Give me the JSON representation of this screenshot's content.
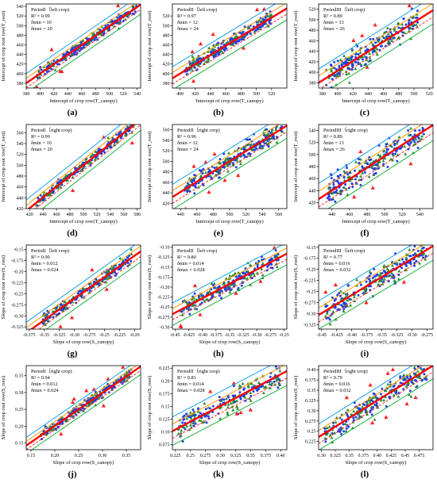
{
  "colors": {
    "point_a": "#1f3fe6",
    "point_b": "#2e8b2e",
    "outlier": "#ff2020",
    "fit": "#ff0000",
    "band_inner_upper": "#ff9900",
    "band_inner_lower": "#ff2a2a",
    "band_outer_upper": "#1aa0e6",
    "band_outer_lower": "#1fb040",
    "axis": "#000000"
  },
  "chart_data": [
    {
      "panel_label": "(a)",
      "type": "scatter",
      "legend": [
        "PeriodI（left crop)",
        "R² = 0.99",
        "δmin = 10",
        "δmax = 20"
      ],
      "xlabel": "Intercept of crop row(T_canopy)",
      "ylabel": "Intercept of crop root row(T_root)",
      "xlim": [
        380,
        545
      ],
      "ylim": [
        370,
        545
      ],
      "xticks": [
        380,
        400,
        420,
        440,
        460,
        480,
        500,
        520,
        540
      ],
      "yticks": [
        380,
        400,
        420,
        440,
        460,
        480,
        500,
        520,
        540
      ],
      "fit": {
        "slope": 0.99,
        "intercept": 4
      },
      "band_inner": 10,
      "band_outer": 20,
      "cloud": {
        "x0": 395,
        "x1": 540,
        "n": 260,
        "spread": 5
      }
    },
    {
      "panel_label": "(b)",
      "type": "scatter",
      "legend": [
        "PeriodII（left crop)",
        "R² = 0.97",
        "δmin = 12",
        "δmax = 24"
      ],
      "xlabel": "Intercept of crop row(T_canopy)",
      "ylabel": "Intercept of crop root row(T_root)",
      "xlim": [
        390,
        540
      ],
      "ylim": [
        370,
        545
      ],
      "xticks": [
        400,
        420,
        440,
        460,
        480,
        500,
        520
      ],
      "yticks": [
        380,
        400,
        420,
        440,
        460,
        480,
        500,
        520
      ],
      "fit": {
        "slope": 0.97,
        "intercept": 12
      },
      "band_inner": 12,
      "band_outer": 24,
      "cloud": {
        "x0": 405,
        "x1": 520,
        "n": 260,
        "spread": 7
      }
    },
    {
      "panel_label": "(c)",
      "type": "scatter",
      "legend": [
        "PeriodIII（left crop)",
        "R² = 0.89",
        "δmin = 13",
        "δmax = 26"
      ],
      "xlabel": "Intercept of crop row(T_canopy)",
      "ylabel": "Intercept of crop root row(T_root)",
      "xlim": [
        375,
        525
      ],
      "ylim": [
        370,
        530
      ],
      "xticks": [
        380,
        400,
        420,
        440,
        460,
        480,
        500,
        520
      ],
      "yticks": [
        380,
        400,
        420,
        440,
        460,
        480,
        500,
        520
      ],
      "fit": {
        "slope": 0.92,
        "intercept": 35
      },
      "band_inner": 13,
      "band_outer": 26,
      "cloud": {
        "x0": 385,
        "x1": 505,
        "n": 240,
        "spread": 11
      }
    },
    {
      "panel_label": "(d)",
      "type": "scatter",
      "legend": [
        "PeriodI（right crop)",
        "R² = 0.99",
        "δmin = 10",
        "δmax = 20"
      ],
      "xlabel": "Intercept of crop row(T_canopy)",
      "ylabel": "Intercept of crop root row(T_root)",
      "xlim": [
        415,
        585
      ],
      "ylim": [
        420,
        575
      ],
      "xticks": [
        420,
        440,
        460,
        480,
        500,
        520,
        540,
        560,
        580
      ],
      "yticks": [
        420,
        440,
        460,
        480,
        500,
        520,
        540,
        560
      ],
      "fit": {
        "slope": 0.99,
        "intercept": 5
      },
      "band_inner": 10,
      "band_outer": 20,
      "cloud": {
        "x0": 430,
        "x1": 575,
        "n": 260,
        "spread": 4
      }
    },
    {
      "panel_label": "(e)",
      "type": "scatter",
      "legend": [
        "PeriodII（right crop)",
        "R² = 0.96",
        "δmin = 12",
        "δmax = 24"
      ],
      "xlabel": "Intercept of crop row(T_canopy)",
      "ylabel": "Intercept of crop root row(T_root)",
      "xlim": [
        430,
        570
      ],
      "ylim": [
        410,
        570
      ],
      "xticks": [
        440,
        460,
        480,
        500,
        520,
        540,
        560
      ],
      "yticks": [
        420,
        440,
        460,
        480,
        500,
        520,
        540,
        560
      ],
      "fit": {
        "slope": 0.97,
        "intercept": 15
      },
      "band_inner": 12,
      "band_outer": 24,
      "cloud": {
        "x0": 445,
        "x1": 565,
        "n": 260,
        "spread": 8
      }
    },
    {
      "panel_label": "(f)",
      "type": "scatter",
      "legend": [
        "PeriodIII（right crop)",
        "R² = 0.89",
        "δmin = 13",
        "δmax = 26"
      ],
      "xlabel": "Intercept of crop row(T_canopy)",
      "ylabel": "Intercept of crop root row(T_root)",
      "xlim": [
        425,
        555
      ],
      "ylim": [
        410,
        550
      ],
      "xticks": [
        440,
        460,
        480,
        500,
        520,
        540
      ],
      "yticks": [
        420,
        440,
        460,
        480,
        500,
        520,
        540
      ],
      "fit": {
        "slope": 0.95,
        "intercept": 22
      },
      "band_inner": 13,
      "band_outer": 26,
      "cloud": {
        "x0": 435,
        "x1": 545,
        "n": 240,
        "spread": 11
      }
    },
    {
      "panel_label": "(g)",
      "type": "scatter",
      "legend": [
        "PeriodI（left crop)",
        "R² = 0.90",
        "δmin = 0.012",
        "δmax = 0.024"
      ],
      "xlabel": "Slope of crop row(S_canopy)",
      "ylabel": "Slope  of crop root row(S_root)",
      "xlim": [
        -0.38,
        -0.19
      ],
      "ylim": [
        -0.33,
        -0.14
      ],
      "xticks": [
        -0.375,
        -0.35,
        -0.325,
        -0.3,
        -0.275,
        -0.25,
        -0.225,
        -0.2
      ],
      "yticks": [
        -0.325,
        -0.3,
        -0.275,
        -0.25,
        -0.225,
        -0.2,
        -0.175,
        -0.15
      ],
      "fit": {
        "slope": 0.97,
        "intercept": 0.03
      },
      "band_inner": 0.012,
      "band_outer": 0.024,
      "cloud": {
        "x0": -0.355,
        "x1": -0.205,
        "n": 240,
        "spread": 0.006
      }
    },
    {
      "panel_label": "(h)",
      "type": "scatter",
      "legend": [
        "PeriodII（left crop)",
        "R² = 0.80",
        "δmin = 0.014",
        "δmax = 0.028"
      ],
      "xlabel": "Slope of crop row(S_canopy)",
      "ylabel": "Slope  of crop root row(S_root)",
      "xlim": [
        -0.455,
        -0.245
      ],
      "ylim": [
        -0.305,
        -0.095
      ],
      "xticks": [
        -0.45,
        -0.425,
        -0.4,
        -0.375,
        -0.35,
        -0.325,
        -0.3,
        -0.275,
        -0.25
      ],
      "yticks": [
        -0.3,
        -0.275,
        -0.25,
        -0.225,
        -0.2,
        -0.175,
        -0.15,
        -0.125,
        -0.1
      ],
      "fit": {
        "slope": 0.72,
        "intercept": 0.06
      },
      "band_inner": 0.014,
      "band_outer": 0.028,
      "cloud": {
        "x0": -0.44,
        "x1": -0.26,
        "n": 230,
        "spread": 0.011
      }
    },
    {
      "panel_label": "(i)",
      "type": "scatter",
      "legend": [
        "PeriodIII（left crop)",
        "R² = 0.77",
        "δmin = 0.016",
        "δmax = 0.032"
      ],
      "xlabel": "Slope of crop row(S_canopy)",
      "ylabel": "Slope  of crop root row(S_root)",
      "xlim": [
        -0.455,
        -0.265
      ],
      "ylim": [
        -0.335,
        -0.145
      ],
      "xticks": [
        -0.45,
        -0.425,
        -0.4,
        -0.375,
        -0.35,
        -0.325,
        -0.3,
        -0.275
      ],
      "yticks": [
        -0.325,
        -0.3,
        -0.275,
        -0.25,
        -0.225,
        -0.2,
        -0.175,
        -0.15
      ],
      "fit": {
        "slope": 0.82,
        "intercept": 0.07
      },
      "band_inner": 0.016,
      "band_outer": 0.032,
      "cloud": {
        "x0": -0.445,
        "x1": -0.275,
        "n": 230,
        "spread": 0.013
      }
    },
    {
      "panel_label": "(j)",
      "type": "scatter",
      "legend": [
        "PeriodI（right crop)",
        "R² = 0.94",
        "δmin = 0.012",
        "δmax = 0.024"
      ],
      "xlabel": "Slope of crop row(S_canopy)",
      "ylabel": "Slope  of crop root row(S_root)",
      "xlim": [
        0.14,
        0.38
      ],
      "ylim": [
        0.13,
        0.38
      ],
      "xticks": [
        0.15,
        0.2,
        0.25,
        0.3,
        0.35
      ],
      "yticks": [
        0.15,
        0.2,
        0.25,
        0.3,
        0.35
      ],
      "fit": {
        "slope": 0.98,
        "intercept": 0.005
      },
      "band_inner": 0.012,
      "band_outer": 0.024,
      "cloud": {
        "x0": 0.17,
        "x1": 0.36,
        "n": 240,
        "spread": 0.007
      }
    },
    {
      "panel_label": "(k)",
      "type": "scatter",
      "legend": [
        "PeriodII（right crop)",
        "R² = 0.81",
        "δmin = 0.014",
        "δmax = 0.028"
      ],
      "xlabel": "Slope of crop row(S_canopy)",
      "ylabel": "Slope  of crop root row(S_root)",
      "xlim": [
        0.22,
        0.41
      ],
      "ylim": [
        0.065,
        0.23
      ],
      "xticks": [
        0.225,
        0.25,
        0.275,
        0.3,
        0.325,
        0.35,
        0.375,
        0.4
      ],
      "yticks": [
        0.075,
        0.1,
        0.125,
        0.15,
        0.175,
        0.2,
        0.225
      ],
      "fit": {
        "slope": 0.62,
        "intercept": -0.035
      },
      "band_inner": 0.014,
      "band_outer": 0.028,
      "cloud": {
        "x0": 0.23,
        "x1": 0.4,
        "n": 230,
        "spread": 0.011
      }
    },
    {
      "panel_label": "(l)",
      "type": "scatter",
      "legend": [
        "PeriodIII（right crop)",
        "R² = 0.79",
        "δmin = 0.016",
        "δmax = 0.032"
      ],
      "xlabel": "Slope of crop row(S_canopy)",
      "ylabel": "Slope  of crop root row(S_root)",
      "xlim": [
        0.295,
        0.5
      ],
      "ylim": [
        0.205,
        0.41
      ],
      "xticks": [
        0.3,
        0.325,
        0.35,
        0.375,
        0.4,
        0.425,
        0.45,
        0.475
      ],
      "yticks": [
        0.225,
        0.25,
        0.275,
        0.3,
        0.325,
        0.35,
        0.375,
        0.4
      ],
      "fit": {
        "slope": 0.85,
        "intercept": -0.015
      },
      "band_inner": 0.016,
      "band_outer": 0.032,
      "cloud": {
        "x0": 0.305,
        "x1": 0.49,
        "n": 230,
        "spread": 0.013
      }
    }
  ]
}
